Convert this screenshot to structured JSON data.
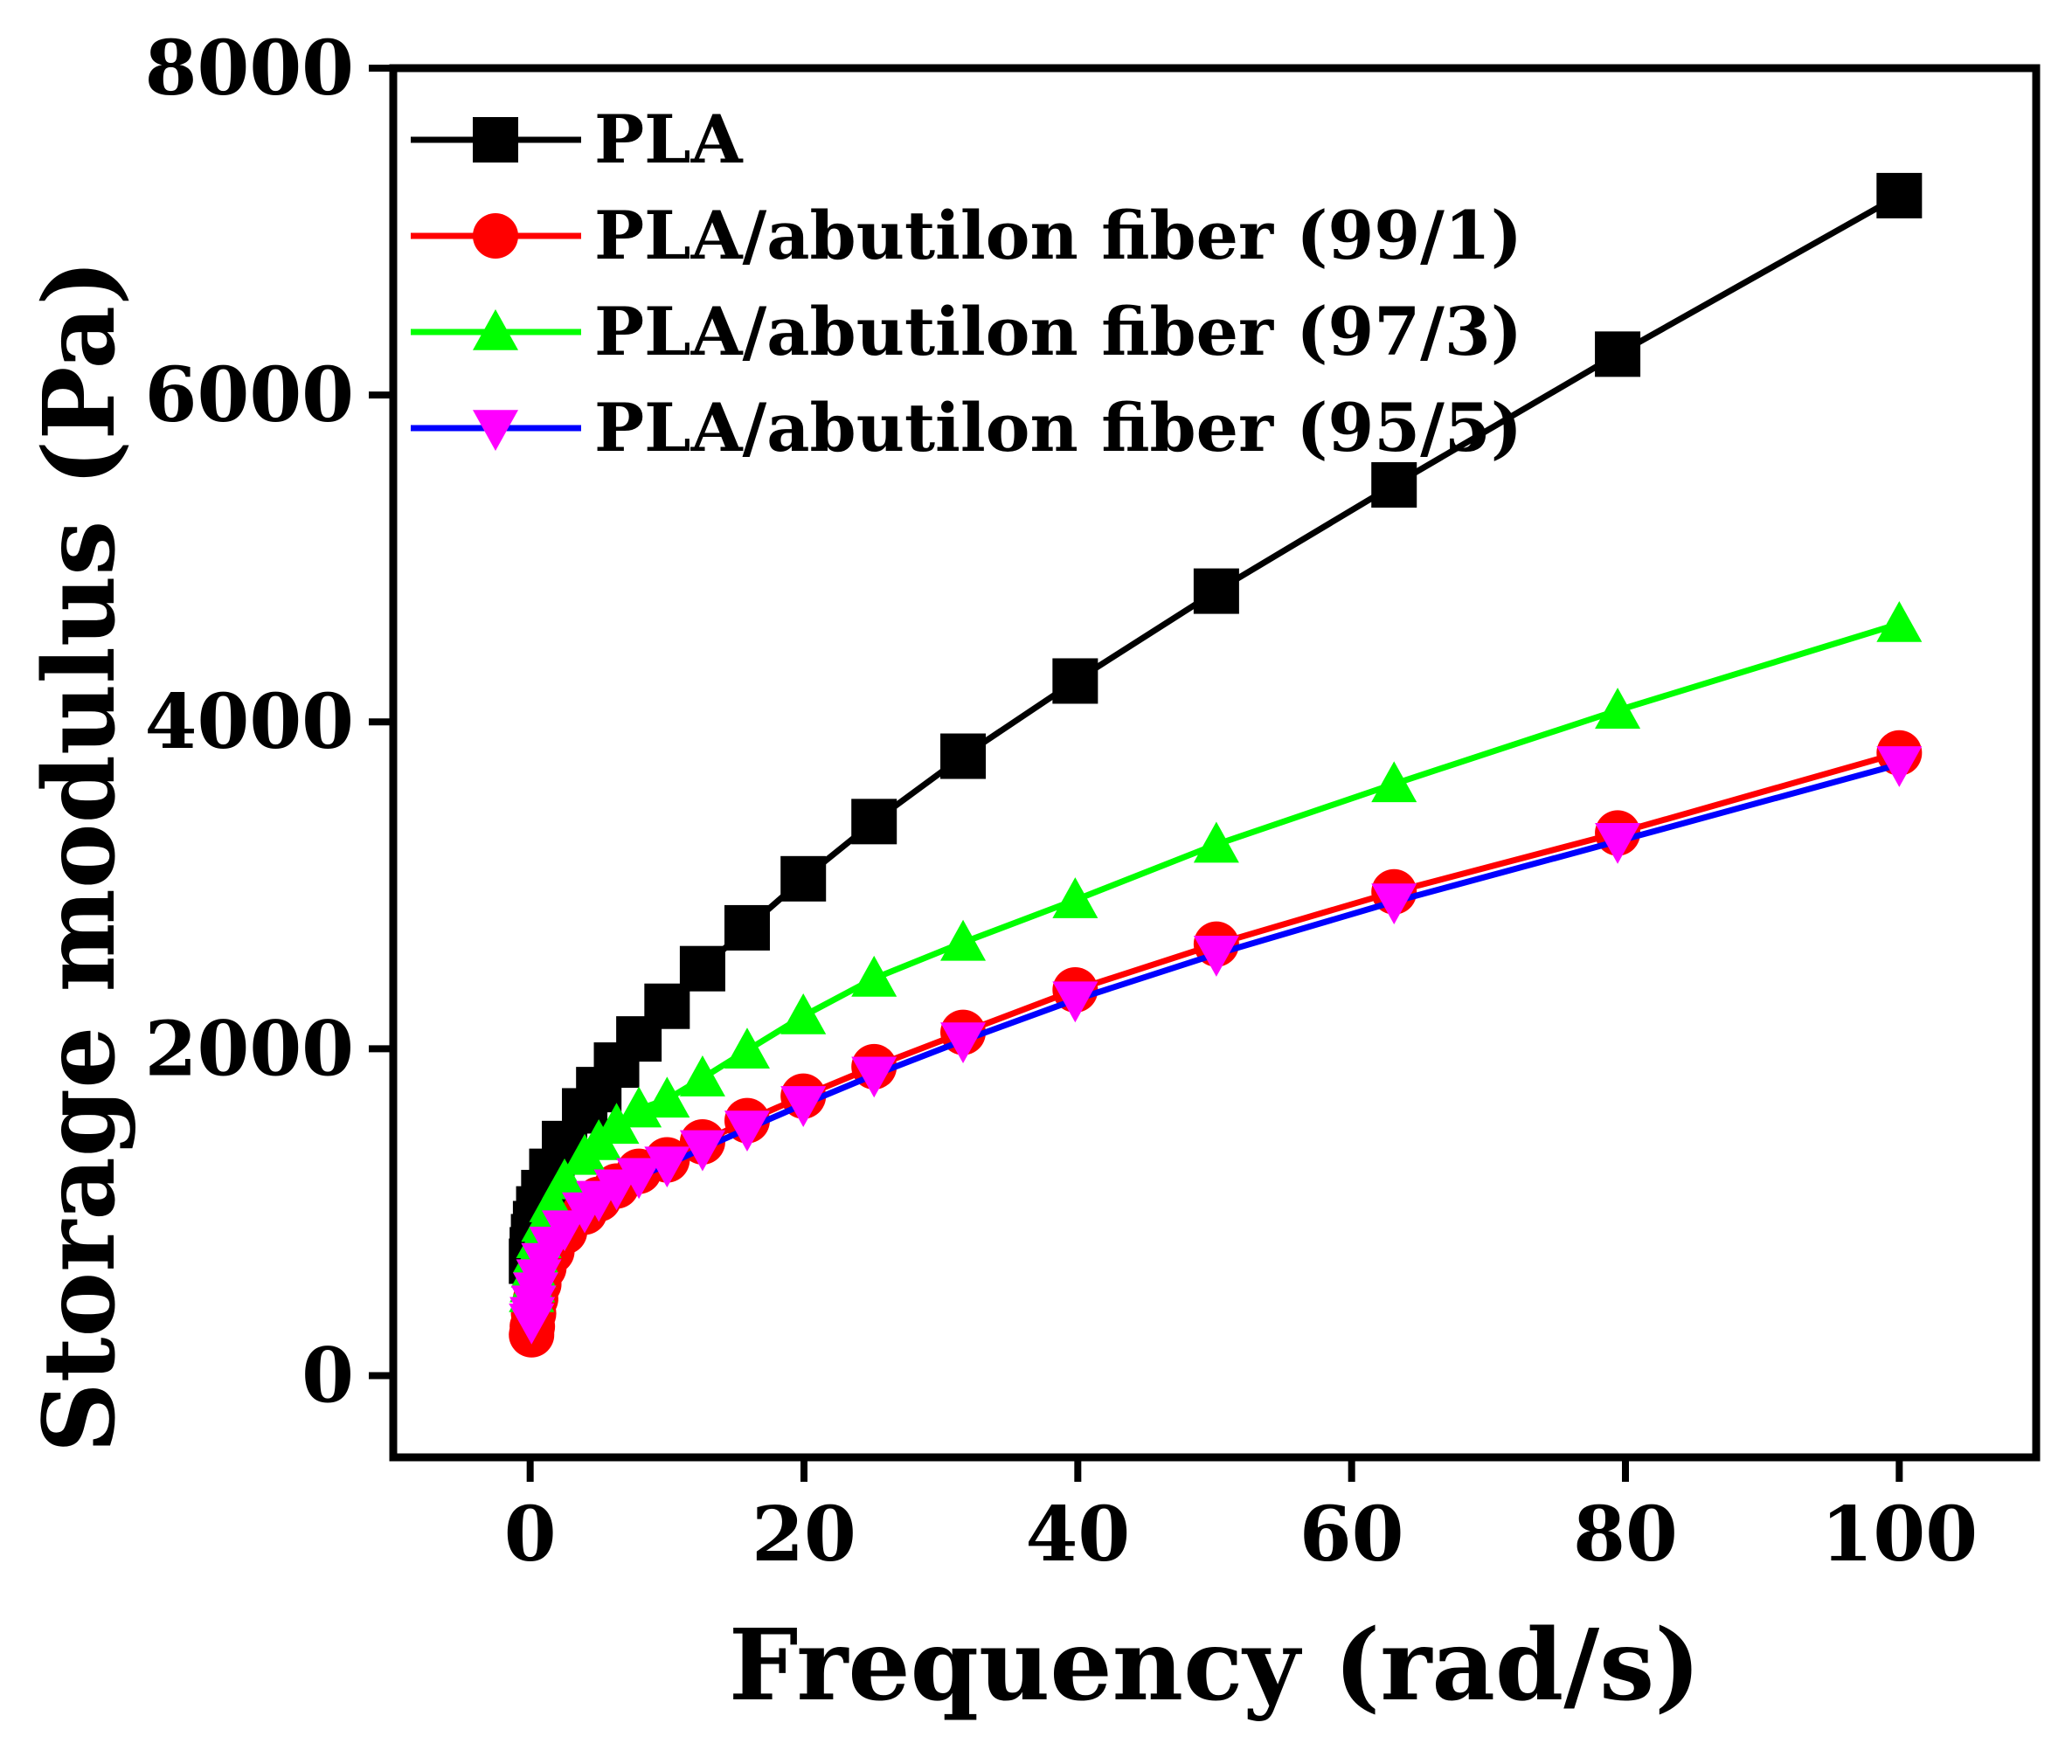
{
  "chart_data": {
    "type": "line",
    "title": "",
    "xlabel": "Frequency (rad/s)",
    "ylabel": "Storage modulus (Pa)",
    "xlim": [
      -10,
      110
    ],
    "ylim": [
      -500,
      8000
    ],
    "xticks": [
      0,
      20,
      40,
      60,
      80,
      100
    ],
    "yticks": [
      0,
      2000,
      4000,
      6000,
      8000
    ],
    "xtick_labels": [
      "0",
      "20",
      "40",
      "60",
      "80",
      "100"
    ],
    "ytick_labels": [
      "0",
      "2000",
      "4000",
      "6000",
      "8000"
    ],
    "legend_position": "top-left",
    "x": [
      0.1,
      0.158,
      0.251,
      0.398,
      0.631,
      1.0,
      1.585,
      2.512,
      3.981,
      5.012,
      6.31,
      7.943,
      10.0,
      12.59,
      15.85,
      19.95,
      25.12,
      31.62,
      39.81,
      50.12,
      63.1,
      79.43,
      100.0
    ],
    "series": [
      {
        "name": "PLA",
        "color": "#000000",
        "marker": "square",
        "values": [
          700,
          770,
          850,
          930,
          1020,
          1120,
          1250,
          1420,
          1620,
          1750,
          1900,
          2060,
          2260,
          2490,
          2740,
          3040,
          3390,
          3790,
          4250,
          4800,
          5450,
          6250,
          7220
        ]
      },
      {
        "name": "PLA/abutilon fiber (99/1)",
        "color": "#ff0000",
        "marker": "circle",
        "values": [
          250,
          300,
          380,
          470,
          560,
          660,
          760,
          880,
          1000,
          1080,
          1160,
          1250,
          1320,
          1430,
          1560,
          1710,
          1890,
          2100,
          2360,
          2640,
          2960,
          3320,
          3810
        ]
      },
      {
        "name": "PLA/abutilon fiber (97/3)",
        "color": "#00ff00",
        "marker": "triangle-up",
        "values": [
          500,
          560,
          650,
          740,
          830,
          930,
          1050,
          1190,
          1340,
          1430,
          1530,
          1630,
          1690,
          1820,
          1990,
          2200,
          2430,
          2650,
          2910,
          3250,
          3620,
          4070,
          4600
        ]
      },
      {
        "name": "PLA/abutilon fiber (95/5)",
        "color": "#0000ff",
        "marker_color": "#ff00ff",
        "marker": "triangle-down",
        "values": [
          330,
          370,
          440,
          520,
          600,
          700,
          800,
          900,
          1010,
          1080,
          1150,
          1220,
          1290,
          1390,
          1510,
          1660,
          1840,
          2050,
          2300,
          2580,
          2900,
          3270,
          3740
        ]
      }
    ]
  }
}
